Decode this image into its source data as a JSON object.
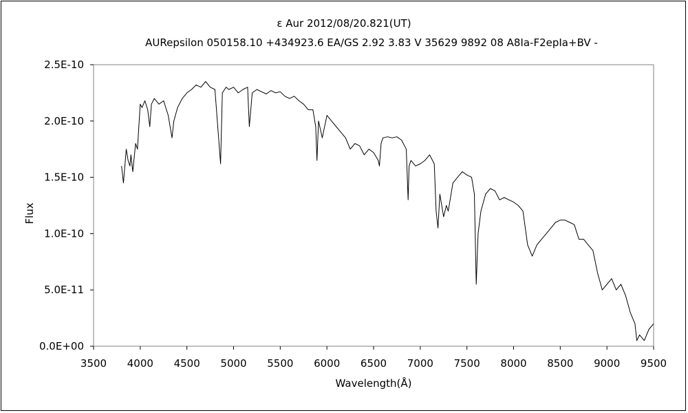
{
  "chart_data": {
    "type": "line",
    "title": "ε  Aur   2012/08/20.821(UT)",
    "subtitle": "AURepsilon 050158.10 +434923.6 EA/GS 2.92 3.83 V 35629 9892 08 A8Ia-F2epIa+BV -",
    "xlabel": "Wavelength(Å)",
    "ylabel": "Flux",
    "xlim": [
      3500,
      9500
    ],
    "ylim": [
      0,
      2.5e-10
    ],
    "xticks": [
      "3500",
      "4000",
      "4500",
      "5000",
      "5500",
      "6000",
      "6500",
      "7000",
      "7500",
      "8000",
      "8500",
      "9000",
      "9500"
    ],
    "yticks": [
      "0.0E+00",
      "5.0E-11",
      "1.0E-10",
      "1.5E-10",
      "2.0E-10",
      "2.5E-10"
    ],
    "grid": false,
    "legend": "none",
    "series": [
      {
        "color": "#000000",
        "x": [
          3800,
          3820,
          3830,
          3850,
          3870,
          3890,
          3900,
          3920,
          3950,
          3970,
          4000,
          4020,
          4050,
          4080,
          4102,
          4120,
          4150,
          4200,
          4250,
          4300,
          4340,
          4360,
          4400,
          4450,
          4500,
          4550,
          4600,
          4650,
          4700,
          4750,
          4800,
          4861,
          4880,
          4920,
          4950,
          5000,
          5050,
          5100,
          5150,
          5169,
          5200,
          5250,
          5300,
          5350,
          5400,
          5450,
          5500,
          5550,
          5600,
          5650,
          5700,
          5750,
          5800,
          5850,
          5880,
          5893,
          5910,
          5950,
          6000,
          6050,
          6100,
          6150,
          6200,
          6250,
          6300,
          6350,
          6400,
          6450,
          6500,
          6550,
          6563,
          6580,
          6600,
          6650,
          6700,
          6750,
          6800,
          6850,
          6870,
          6880,
          6900,
          6950,
          7000,
          7050,
          7100,
          7150,
          7170,
          7190,
          7210,
          7250,
          7280,
          7300,
          7350,
          7400,
          7450,
          7500,
          7550,
          7580,
          7600,
          7620,
          7650,
          7700,
          7750,
          7800,
          7850,
          7900,
          7950,
          8000,
          8050,
          8100,
          8150,
          8200,
          8250,
          8300,
          8350,
          8400,
          8450,
          8500,
          8550,
          8600,
          8650,
          8700,
          8750,
          8800,
          8850,
          8900,
          8950,
          9000,
          9050,
          9100,
          9150,
          9200,
          9250,
          9300,
          9320,
          9350,
          9400,
          9450,
          9500
        ],
        "y": [
          1.6e-10,
          1.45e-10,
          1.55e-10,
          1.75e-10,
          1.65e-10,
          1.6e-10,
          1.7e-10,
          1.55e-10,
          1.8e-10,
          1.75e-10,
          2.15e-10,
          2.12e-10,
          2.18e-10,
          2.1e-10,
          1.95e-10,
          2.15e-10,
          2.2e-10,
          2.15e-10,
          2.18e-10,
          2.05e-10,
          1.85e-10,
          2e-10,
          2.12e-10,
          2.2e-10,
          2.25e-10,
          2.28e-10,
          2.32e-10,
          2.3e-10,
          2.35e-10,
          2.3e-10,
          2.28e-10,
          1.62e-10,
          2.25e-10,
          2.3e-10,
          2.28e-10,
          2.3e-10,
          2.25e-10,
          2.28e-10,
          2.3e-10,
          1.95e-10,
          2.25e-10,
          2.28e-10,
          2.26e-10,
          2.24e-10,
          2.27e-10,
          2.25e-10,
          2.26e-10,
          2.22e-10,
          2.2e-10,
          2.22e-10,
          2.18e-10,
          2.15e-10,
          2.1e-10,
          2.1e-10,
          1.95e-10,
          1.65e-10,
          2e-10,
          1.85e-10,
          2.05e-10,
          2e-10,
          1.95e-10,
          1.9e-10,
          1.85e-10,
          1.75e-10,
          1.8e-10,
          1.78e-10,
          1.7e-10,
          1.75e-10,
          1.72e-10,
          1.65e-10,
          1.6e-10,
          1.8e-10,
          1.85e-10,
          1.86e-10,
          1.85e-10,
          1.86e-10,
          1.83e-10,
          1.75e-10,
          1.3e-10,
          1.6e-10,
          1.65e-10,
          1.6e-10,
          1.62e-10,
          1.65e-10,
          1.7e-10,
          1.62e-10,
          1.2e-10,
          1.05e-10,
          1.35e-10,
          1.15e-10,
          1.25e-10,
          1.2e-10,
          1.45e-10,
          1.5e-10,
          1.55e-10,
          1.52e-10,
          1.5e-10,
          1.35e-10,
          5.5e-11,
          1e-10,
          1.2e-10,
          1.35e-10,
          1.4e-10,
          1.38e-10,
          1.3e-10,
          1.32e-10,
          1.3e-10,
          1.28e-10,
          1.25e-10,
          1.2e-10,
          9e-11,
          8e-11,
          9e-11,
          9.5e-11,
          1e-10,
          1.05e-10,
          1.1e-10,
          1.12e-10,
          1.12e-10,
          1.1e-10,
          1.08e-10,
          9.5e-11,
          9.5e-11,
          9e-11,
          8.5e-11,
          6.5e-11,
          5e-11,
          5.5e-11,
          6e-11,
          5e-11,
          5.5e-11,
          4.5e-11,
          3e-11,
          2e-11,
          5e-12,
          1e-11,
          5e-12,
          1.5e-11,
          2e-11
        ]
      }
    ]
  }
}
